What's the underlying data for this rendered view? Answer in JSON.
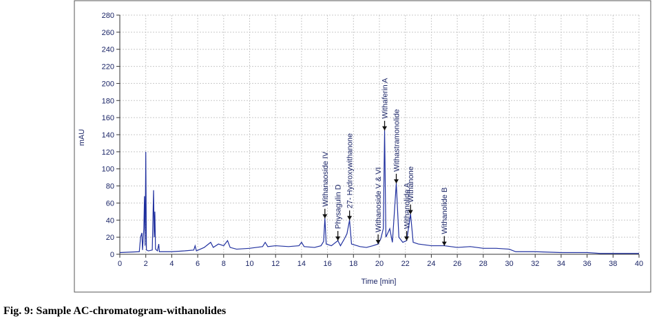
{
  "chart_data": {
    "type": "line",
    "caption": "Fig. 9: Sample AC-chromatogram-withanolides",
    "xlabel": "Time [min]",
    "ylabel": "mAU",
    "xlim": [
      0,
      40
    ],
    "ylim": [
      0,
      280
    ],
    "xticks": [
      0,
      2,
      4,
      6,
      8,
      10,
      12,
      14,
      16,
      18,
      20,
      22,
      24,
      26,
      28,
      30,
      32,
      34,
      36,
      38,
      40
    ],
    "yticks": [
      0,
      20,
      40,
      60,
      80,
      100,
      120,
      140,
      160,
      180,
      200,
      220,
      240,
      260,
      280
    ],
    "grid": true,
    "series": [
      {
        "color": "#1f2f9e",
        "x": [
          0,
          1.5,
          1.6,
          1.7,
          1.75,
          1.85,
          1.9,
          1.95,
          2.0,
          2.05,
          2.2,
          2.5,
          2.6,
          2.65,
          2.7,
          2.75,
          2.9,
          3.0,
          3.05,
          4,
          5,
          5.7,
          5.8,
          5.9,
          6.5,
          7,
          7.2,
          7.6,
          8,
          8.3,
          8.5,
          9,
          10,
          10.5,
          11,
          11.2,
          11.4,
          12,
          13,
          13.8,
          14,
          14.2,
          15,
          15.5,
          15.7,
          15.8,
          15.9,
          16.3,
          16.8,
          17,
          17.3,
          17.5,
          17.7,
          17.85,
          18.5,
          19,
          19.5,
          19.9,
          20.1,
          20.3,
          20.4,
          20.5,
          20.8,
          21,
          21.3,
          21.5,
          21.8,
          22.1,
          22.4,
          22.6,
          23,
          24,
          25,
          26,
          27,
          28,
          29,
          30,
          30.5,
          32,
          34,
          36,
          37,
          38,
          40
        ],
        "values": [
          2,
          3,
          20,
          25,
          5,
          30,
          68,
          10,
          120,
          5,
          4,
          5,
          75,
          20,
          50,
          6,
          4,
          12,
          3,
          3,
          4,
          5,
          10,
          4,
          8,
          14,
          8,
          12,
          10,
          16,
          8,
          6,
          7,
          8,
          9,
          14,
          9,
          10,
          9,
          10,
          14,
          9,
          8,
          10,
          15,
          42,
          12,
          10,
          16,
          10,
          18,
          24,
          40,
          12,
          9,
          8,
          10,
          12,
          18,
          30,
          145,
          20,
          30,
          14,
          83,
          20,
          14,
          16,
          47,
          14,
          12,
          10,
          10,
          8,
          9,
          7,
          7,
          6,
          3,
          3,
          2,
          2,
          1,
          1,
          1
        ]
      }
    ],
    "annotations": [
      {
        "text": "Withanaoside IV",
        "x": 15.8,
        "y": 42
      },
      {
        "text": "Physagulin D",
        "x": 16.8,
        "y": 16
      },
      {
        "text": "27- Hydroxywithanone",
        "x": 17.7,
        "y": 40
      },
      {
        "text": "Withanoside V & VI",
        "x": 19.9,
        "y": 12
      },
      {
        "text": "Withaferin A",
        "x": 20.4,
        "y": 145
      },
      {
        "text": "Withastramonolide",
        "x": 21.3,
        "y": 83
      },
      {
        "text": "Withanolide A",
        "x": 22.1,
        "y": 16
      },
      {
        "text": "Withanone",
        "x": 22.4,
        "y": 47
      },
      {
        "text": "Withanolide B",
        "x": 25.0,
        "y": 10
      }
    ]
  }
}
